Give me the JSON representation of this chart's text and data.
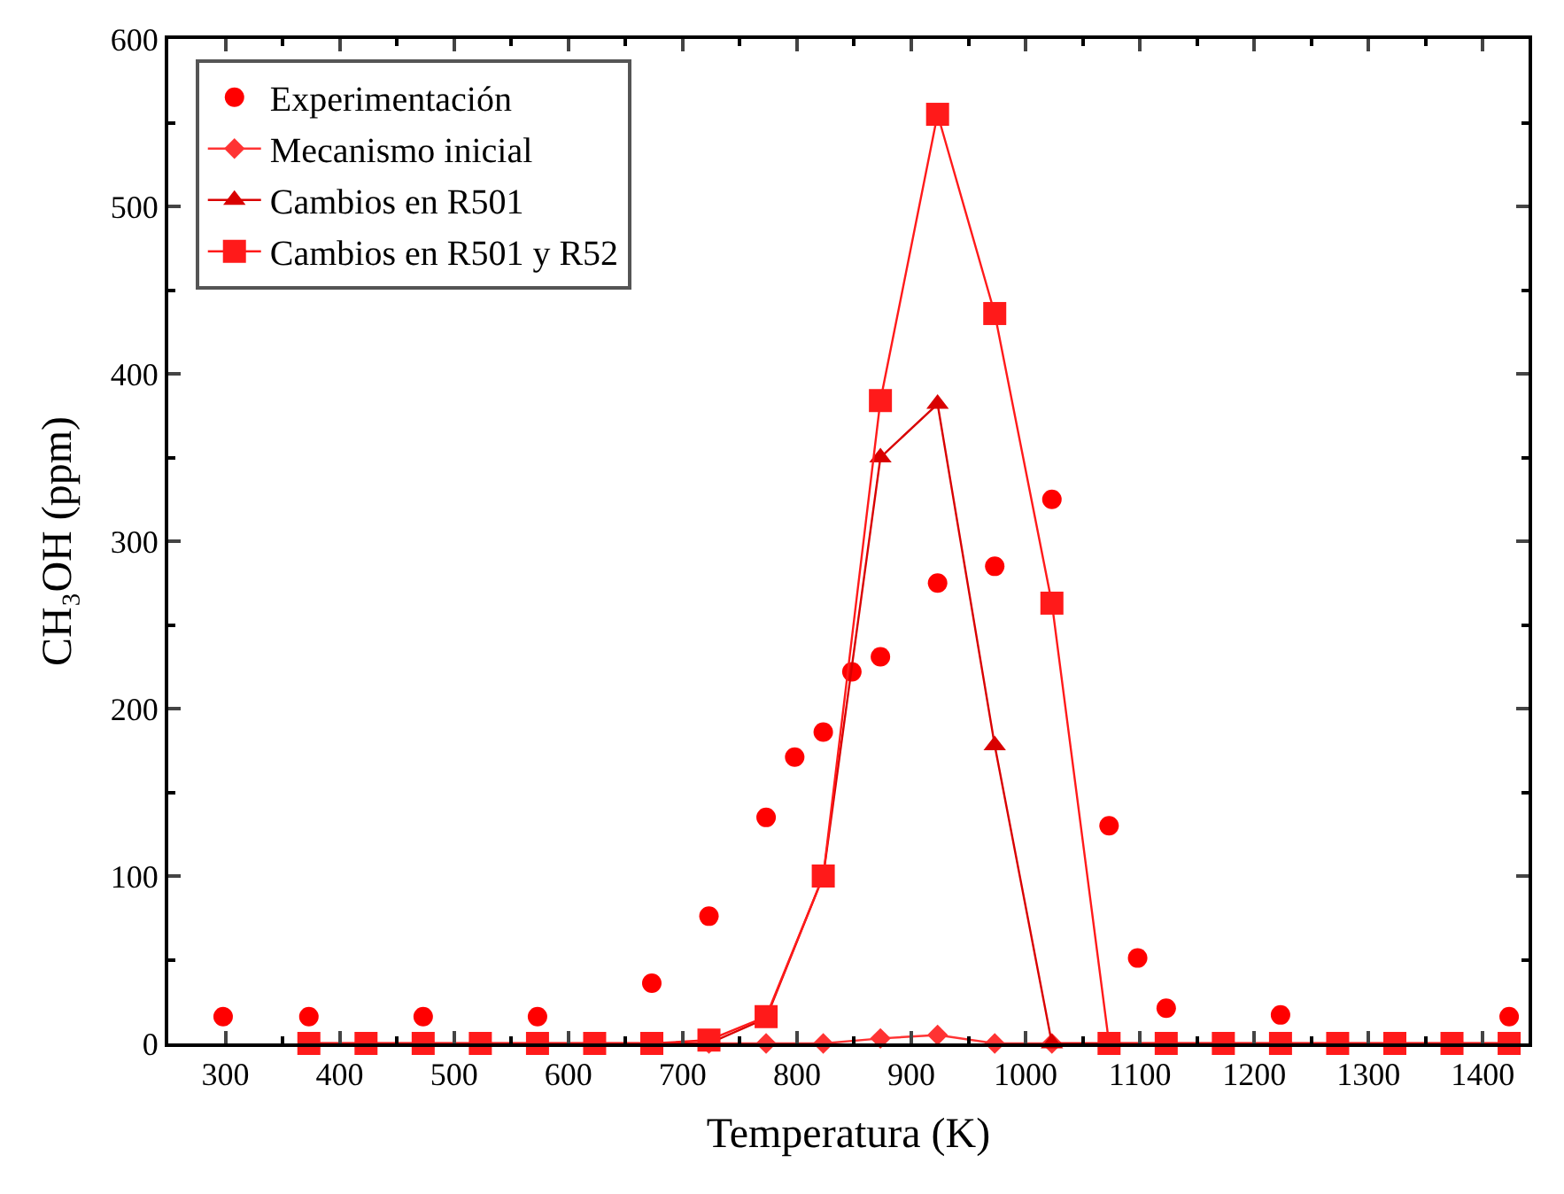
{
  "chart_data": {
    "type": "line",
    "xlabel": "Temperatura (K)",
    "ylabel": "CH₃OH (ppm)",
    "xlim": [
      250,
      1440
    ],
    "xticks": [
      300,
      400,
      500,
      600,
      700,
      800,
      900,
      1000,
      1100,
      1200,
      1300,
      1400
    ],
    "ylim": [
      0,
      600
    ],
    "yticks": [
      0,
      100,
      200,
      300,
      400,
      500,
      600
    ],
    "legend": "top left",
    "series": [
      {
        "name": "Experimentación",
        "type": "scatter",
        "marker": "circle",
        "color": "#ff0000",
        "x": [
          298,
          373,
          473,
          573,
          673,
          723,
          773,
          798,
          823,
          848,
          873,
          923,
          973,
          1023,
          1073,
          1098,
          1123,
          1223,
          1423
        ],
        "values": [
          16,
          16,
          16,
          16,
          36,
          76,
          135,
          171,
          186,
          222,
          231,
          275,
          285,
          325,
          130,
          51,
          21,
          17,
          16
        ]
      },
      {
        "name": "Mecanismo inicial",
        "marker": "diamond",
        "color": "#ff3333",
        "x": [
          373,
          423,
          473,
          523,
          573,
          623,
          673,
          723,
          773,
          823,
          873,
          923,
          973,
          1023,
          1073,
          1123,
          1173,
          1223,
          1273,
          1323,
          1373,
          1423
        ],
        "values": [
          0,
          0,
          0,
          0,
          0,
          0,
          0,
          0,
          0,
          0,
          3,
          5,
          0,
          0,
          0,
          0,
          0,
          0,
          0,
          0,
          0,
          0
        ]
      },
      {
        "name": "Cambios en R501",
        "marker": "triangle",
        "color": "#d90000",
        "x": [
          373,
          423,
          473,
          523,
          573,
          623,
          673,
          723,
          773,
          823,
          873,
          923,
          973,
          1023,
          1073,
          1123,
          1173,
          1223,
          1273,
          1323,
          1373,
          1423
        ],
        "values": [
          0,
          0,
          0,
          0,
          0,
          0,
          0,
          0,
          15,
          100,
          350,
          382,
          178,
          0,
          0,
          0,
          0,
          0,
          0,
          0,
          0,
          0
        ]
      },
      {
        "name": "Cambios en R501 y R52",
        "marker": "square",
        "color": "#ff1a1a",
        "x": [
          373,
          423,
          473,
          523,
          573,
          623,
          673,
          723,
          773,
          823,
          873,
          923,
          973,
          1023,
          1073,
          1123,
          1173,
          1223,
          1273,
          1323,
          1373,
          1423
        ],
        "values": [
          0,
          0,
          0,
          0,
          0,
          0,
          0,
          2,
          16,
          100,
          384,
          555,
          436,
          263,
          0,
          0,
          0,
          0,
          0,
          0,
          0,
          0
        ]
      }
    ]
  }
}
